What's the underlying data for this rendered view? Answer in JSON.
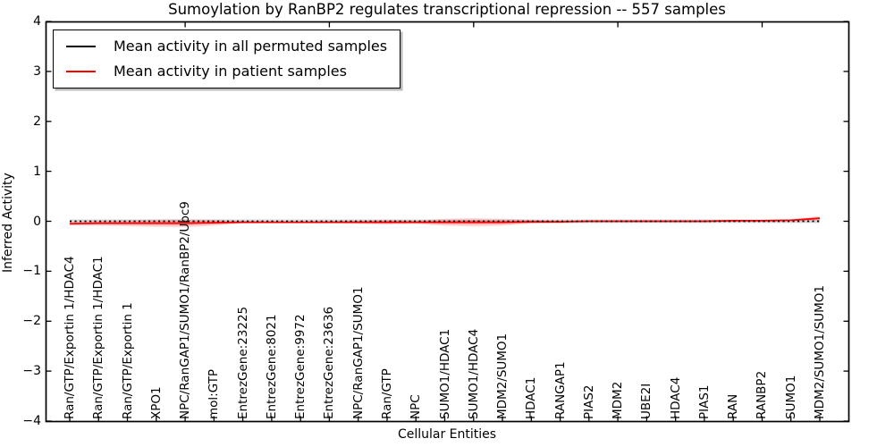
{
  "chart_data": {
    "type": "line",
    "title": "Sumoylation by RanBP2 regulates transcriptional repression -- 557 samples",
    "xlabel": "Cellular Entities",
    "ylabel": "Inferred Activity",
    "ylim": [
      -4,
      4
    ],
    "yticks": [
      4,
      3,
      2,
      1,
      0,
      -1,
      -2,
      -3,
      -4
    ],
    "ytick_labels": [
      "4",
      "3",
      "2",
      "1",
      "0",
      "−1",
      "−2",
      "−3",
      "−4"
    ],
    "grid": false,
    "legend_position": "upper left",
    "categories": [
      "Ran/GTP/Exportin 1/HDAC4",
      "Ran/GTP/Exportin 1/HDAC1",
      "Ran/GTP/Exportin 1",
      "XPO1",
      "NPC/RanGAP1/SUMO1/RanBP2/Ubc9",
      "mol:GTP",
      "EntrezGene:23225",
      "EntrezGene:8021",
      "EntrezGene:9972",
      "EntrezGene:23636",
      "NPC/RanGAP1/SUMO1",
      "Ran/GTP",
      "NPC",
      "SUMO1/HDAC1",
      "SUMO1/HDAC4",
      "MDM2/SUMO1",
      "HDAC1",
      "RANGAP1",
      "PIAS2",
      "MDM2",
      "UBE2I",
      "HDAC4",
      "PIAS1",
      "RAN",
      "RANBP2",
      "SUMO1",
      "MDM2/SUMO1/SUMO1"
    ],
    "series": [
      {
        "name": "Mean activity in all permuted samples",
        "color": "#000000",
        "style": "dotted",
        "values": [
          0,
          0,
          0,
          0,
          0,
          0,
          0,
          0,
          0,
          0,
          0,
          0,
          0,
          0,
          0,
          0,
          0,
          0,
          0,
          0,
          0,
          0,
          0,
          0,
          0,
          0,
          0
        ]
      },
      {
        "name": "Mean activity in patient samples",
        "color": "#ff0000",
        "style": "solid",
        "values": [
          -0.05,
          -0.04,
          -0.04,
          -0.04,
          -0.04,
          -0.03,
          -0.02,
          -0.02,
          -0.02,
          -0.02,
          -0.02,
          -0.02,
          -0.02,
          -0.02,
          -0.02,
          -0.02,
          -0.01,
          -0.01,
          0,
          0,
          0,
          0,
          0,
          0.01,
          0.01,
          0.02,
          0.06
        ]
      }
    ],
    "patient_band_halfwidth": [
      0.035,
      0.05,
      0.06,
      0.075,
      0.08,
      0.06,
      0.025,
      0.02,
      0.02,
      0.025,
      0.035,
      0.05,
      0.035,
      0.07,
      0.085,
      0.07,
      0.04,
      0.025,
      0.02,
      0.02,
      0.02,
      0.02,
      0.02,
      0.02,
      0.02,
      0.025,
      0.045
    ],
    "permuted_band_halfwidth": 0.035,
    "permuted_band_color": "#808080"
  }
}
